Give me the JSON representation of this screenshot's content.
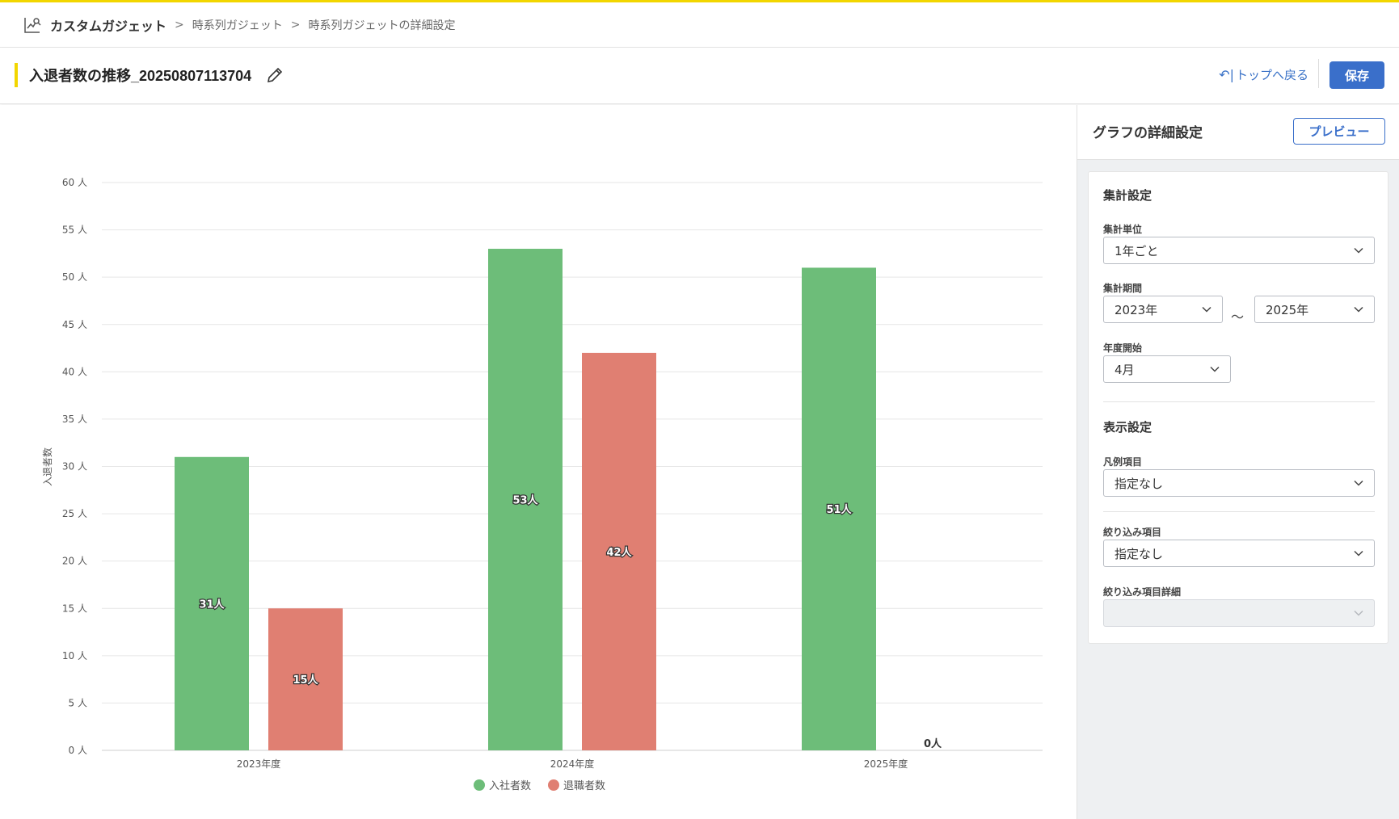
{
  "breadcrumb": {
    "root": "カスタムガジェット",
    "items": [
      "時系列ガジェット",
      "時系列ガジェットの詳細設定"
    ]
  },
  "header": {
    "title": "入退者数の推移_20250807113704",
    "back_label": "トップへ戻る",
    "save_label": "保存"
  },
  "side_panel": {
    "title": "グラフの詳細設定",
    "preview_label": "プレビュー",
    "aggregation": {
      "section_title": "集計設定",
      "unit_label": "集計単位",
      "unit_value": "1年ごと",
      "period_label": "集計期間",
      "period_from": "2023年",
      "period_sep": "〜",
      "period_to": "2025年",
      "fiscal_start_label": "年度開始",
      "fiscal_start_value": "4月"
    },
    "display": {
      "section_title": "表示設定",
      "legend_label": "凡例項目",
      "legend_value": "指定なし",
      "filter_label": "絞り込み項目",
      "filter_value": "指定なし",
      "filter_detail_label": "絞り込み項目詳細",
      "filter_detail_value": ""
    }
  },
  "colors": {
    "accent": "#f2d600",
    "primary": "#3a6fca",
    "series_join": "#6dbd79",
    "series_leave": "#e07f72"
  },
  "chart_data": {
    "type": "bar",
    "categories": [
      "2023年度",
      "2024年度",
      "2025年度"
    ],
    "series": [
      {
        "name": "入社者数",
        "values": [
          31,
          53,
          51
        ],
        "labels": [
          "31人",
          "53人",
          "51人"
        ]
      },
      {
        "name": "退職者数",
        "values": [
          15,
          42,
          0
        ],
        "labels": [
          "15人",
          "42人",
          "0人"
        ]
      }
    ],
    "ylabel": "入退者数",
    "ylim": [
      0,
      60
    ],
    "yticks": [
      0,
      5,
      10,
      15,
      20,
      25,
      30,
      35,
      40,
      45,
      50,
      55,
      60
    ],
    "ytick_suffix": " 人",
    "grid": true,
    "legend_position": "bottom-center"
  }
}
